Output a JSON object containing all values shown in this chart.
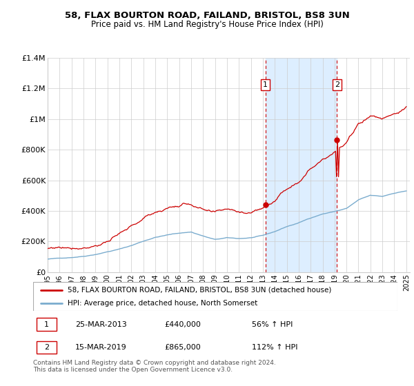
{
  "title1": "58, FLAX BOURTON ROAD, FAILAND, BRISTOL, BS8 3UN",
  "title2": "Price paid vs. HM Land Registry's House Price Index (HPI)",
  "ylim": [
    0,
    1400000
  ],
  "yticks": [
    0,
    200000,
    400000,
    600000,
    800000,
    1000000,
    1200000,
    1400000
  ],
  "ytick_labels": [
    "£0",
    "£200K",
    "£400K",
    "£600K",
    "£800K",
    "£1M",
    "£1.2M",
    "£1.4M"
  ],
  "legend_line1": "58, FLAX BOURTON ROAD, FAILAND, BRISTOL, BS8 3UN (detached house)",
  "legend_line2": "HPI: Average price, detached house, North Somerset",
  "annotation1_label": "1",
  "annotation1_date": "25-MAR-2013",
  "annotation1_price": "£440,000",
  "annotation1_hpi": "56% ↑ HPI",
  "annotation2_label": "2",
  "annotation2_date": "15-MAR-2019",
  "annotation2_price": "£865,000",
  "annotation2_hpi": "112% ↑ HPI",
  "footnote": "Contains HM Land Registry data © Crown copyright and database right 2024.\nThis data is licensed under the Open Government Licence v3.0.",
  "red_color": "#cc0000",
  "blue_color": "#7aacce",
  "shade_color": "#ddeeff",
  "marker1_x": 2013.21,
  "marker1_y": 440000,
  "marker2_x": 2019.21,
  "marker2_y": 865000,
  "xlim_left": 1995.0,
  "xlim_right": 2025.3
}
